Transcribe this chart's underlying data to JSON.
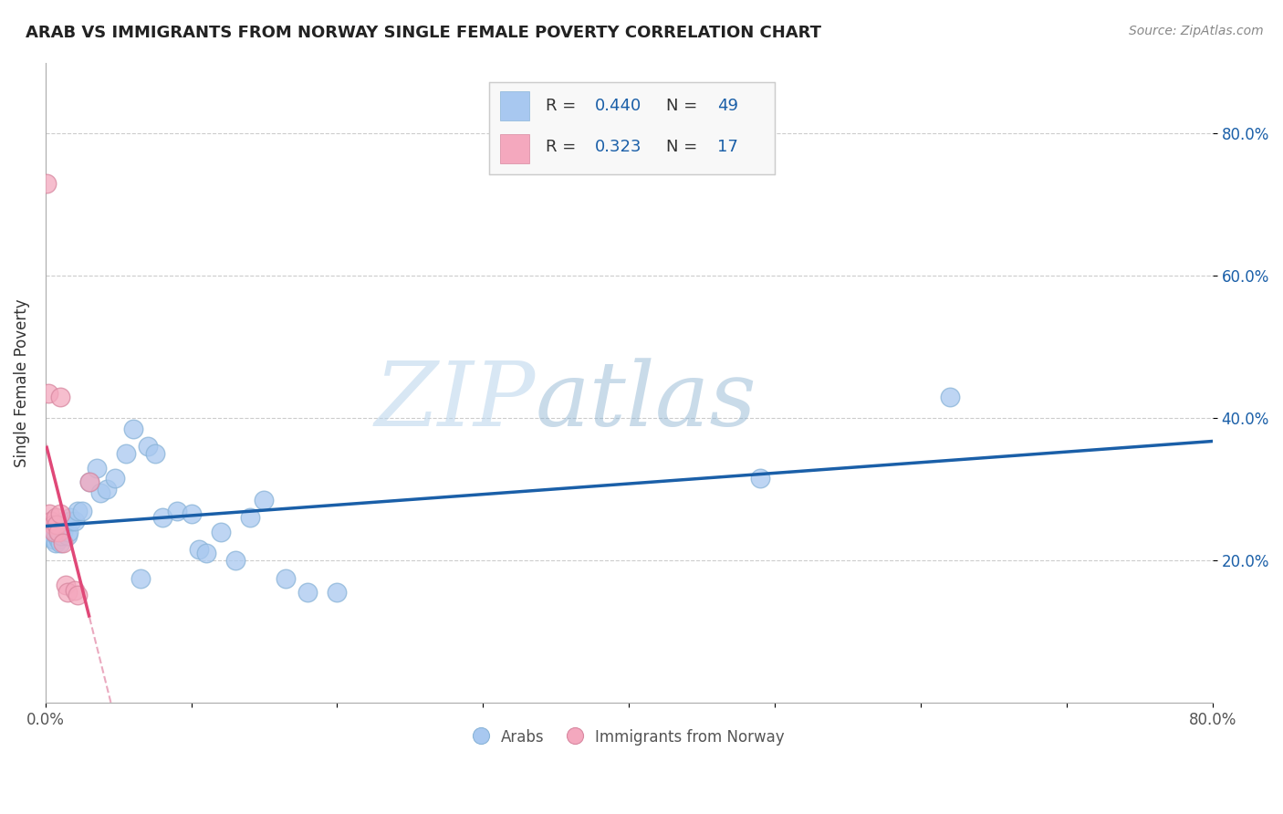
{
  "title": "ARAB VS IMMIGRANTS FROM NORWAY SINGLE FEMALE POVERTY CORRELATION CHART",
  "source": "Source: ZipAtlas.com",
  "ylabel": "Single Female Poverty",
  "xlim": [
    0,
    0.8
  ],
  "ylim": [
    0,
    0.9
  ],
  "legend_labels": [
    "Arabs",
    "Immigrants from Norway"
  ],
  "arab_R": 0.44,
  "arab_N": 49,
  "norway_R": 0.323,
  "norway_N": 17,
  "arab_color": "#a8c8f0",
  "norway_color": "#f4a8be",
  "arab_line_color": "#1a5fa8",
  "norway_line_color": "#e04878",
  "norway_dash_color": "#e8a0b8",
  "watermark_zip": "ZIP",
  "watermark_atlas": "atlas",
  "background_color": "#ffffff",
  "arab_x": [
    0.003,
    0.004,
    0.005,
    0.005,
    0.006,
    0.006,
    0.007,
    0.007,
    0.008,
    0.008,
    0.009,
    0.009,
    0.01,
    0.01,
    0.011,
    0.012,
    0.013,
    0.014,
    0.015,
    0.016,
    0.017,
    0.018,
    0.02,
    0.022,
    0.025,
    0.03,
    0.035,
    0.038,
    0.042,
    0.048,
    0.055,
    0.06,
    0.065,
    0.07,
    0.075,
    0.08,
    0.09,
    0.1,
    0.105,
    0.11,
    0.12,
    0.13,
    0.14,
    0.15,
    0.165,
    0.18,
    0.2,
    0.49,
    0.62
  ],
  "arab_y": [
    0.24,
    0.235,
    0.23,
    0.25,
    0.24,
    0.23,
    0.24,
    0.225,
    0.235,
    0.245,
    0.23,
    0.25,
    0.235,
    0.225,
    0.235,
    0.24,
    0.255,
    0.25,
    0.235,
    0.24,
    0.26,
    0.255,
    0.255,
    0.27,
    0.27,
    0.31,
    0.33,
    0.295,
    0.3,
    0.315,
    0.35,
    0.385,
    0.175,
    0.36,
    0.35,
    0.26,
    0.27,
    0.265,
    0.215,
    0.21,
    0.24,
    0.2,
    0.26,
    0.285,
    0.175,
    0.155,
    0.155,
    0.315,
    0.43
  ],
  "norway_x": [
    0.001,
    0.002,
    0.003,
    0.004,
    0.005,
    0.006,
    0.007,
    0.008,
    0.009,
    0.01,
    0.01,
    0.012,
    0.014,
    0.015,
    0.02,
    0.022,
    0.03
  ],
  "norway_y": [
    0.73,
    0.435,
    0.265,
    0.255,
    0.25,
    0.24,
    0.26,
    0.25,
    0.24,
    0.265,
    0.43,
    0.225,
    0.165,
    0.155,
    0.158,
    0.152,
    0.31
  ]
}
